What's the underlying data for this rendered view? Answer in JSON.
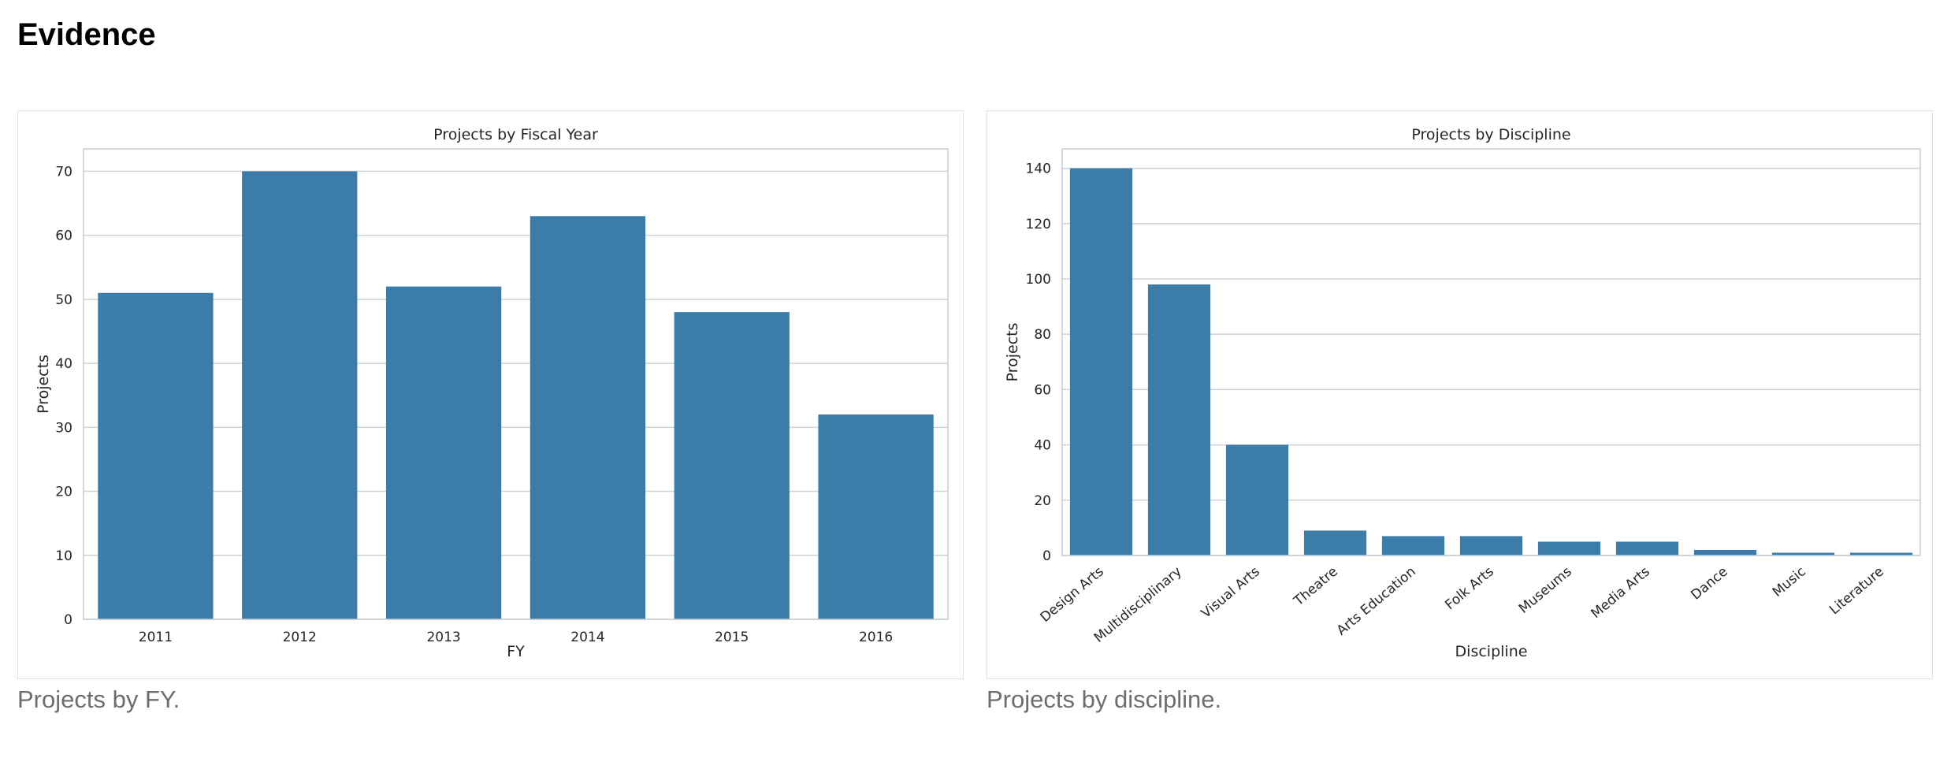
{
  "page": {
    "title": "Evidence"
  },
  "colors": {
    "bar": "#3b7ca8",
    "grid": "#cfd2d6",
    "frame": "#c9ccd1"
  },
  "figures": [
    {
      "caption": "Projects by FY."
    },
    {
      "caption": "Projects by discipline."
    }
  ],
  "chart_data": [
    {
      "type": "bar",
      "title": "Projects by Fiscal Year",
      "xlabel": "FY",
      "ylabel": "Projects",
      "categories": [
        "2011",
        "2012",
        "2013",
        "2014",
        "2015",
        "2016"
      ],
      "values": [
        51,
        70,
        52,
        63,
        48,
        32
      ],
      "ylim": [
        0,
        73.5
      ],
      "yticks": [
        0,
        10,
        20,
        30,
        40,
        50,
        60,
        70
      ],
      "grid": true,
      "rotate_xticks": false
    },
    {
      "type": "bar",
      "title": "Projects by Discipline",
      "xlabel": "Discipline",
      "ylabel": "Projects",
      "categories": [
        "Design Arts",
        "Multidisciplinary",
        "Visual Arts",
        "Theatre",
        "Arts Education",
        "Folk Arts",
        "Museums",
        "Media Arts",
        "Dance",
        "Music",
        "Literature"
      ],
      "values": [
        140,
        98,
        40,
        9,
        7,
        7,
        5,
        5,
        2,
        1,
        1
      ],
      "ylim": [
        0,
        147
      ],
      "yticks": [
        0,
        20,
        40,
        60,
        80,
        100,
        120,
        140
      ],
      "grid": true,
      "rotate_xticks": true
    }
  ]
}
